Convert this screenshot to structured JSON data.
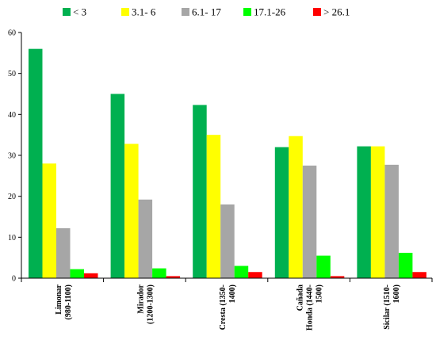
{
  "chart_data": {
    "type": "bar",
    "title": "",
    "xlabel": "",
    "ylabel": "",
    "ylim": [
      0,
      60
    ],
    "yticks": [
      0,
      10,
      20,
      30,
      40,
      50,
      60
    ],
    "grid": false,
    "legend_position": "top",
    "categories": [
      [
        "Limonar",
        "(980-1100)"
      ],
      [
        "Mirador",
        "(1200-1300)"
      ],
      [
        "Cresta (1350-",
        "1400)"
      ],
      [
        "Cañada",
        "Honda (1440-",
        "1500)"
      ],
      [
        "Sicilar (1510-",
        "1600)"
      ]
    ],
    "series": [
      {
        "name": "< 3",
        "color": "#00b050",
        "values": [
          56,
          45,
          42.3,
          32,
          32.2
        ]
      },
      {
        "name": "3.1- 6",
        "color": "#ffff00",
        "values": [
          28,
          32.8,
          35,
          34.7,
          32.2
        ]
      },
      {
        "name": "6.1- 17",
        "color": "#a6a6a6",
        "values": [
          12.2,
          19.2,
          18,
          27.5,
          27.7
        ]
      },
      {
        "name": "17.1-26",
        "color": "#00ff00",
        "values": [
          2.2,
          2.4,
          3,
          5.5,
          6.2
        ]
      },
      {
        "name": "> 26.1",
        "color": "#ff0000",
        "values": [
          1.2,
          0.5,
          1.5,
          0.5,
          1.5
        ]
      }
    ]
  }
}
